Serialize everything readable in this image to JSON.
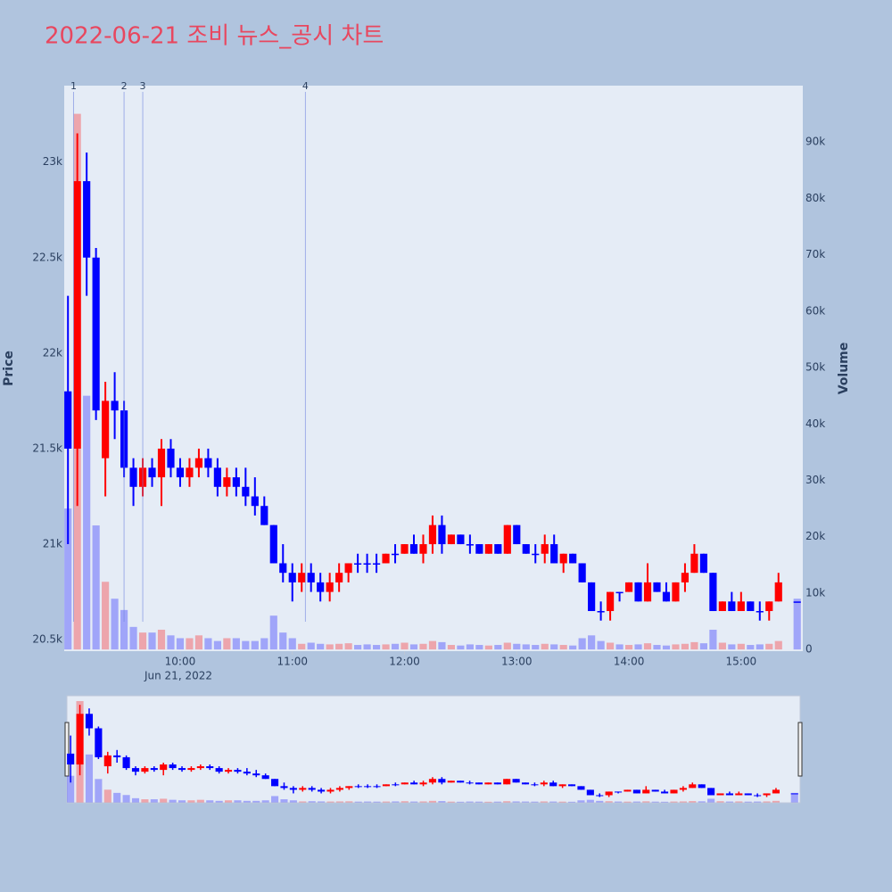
{
  "chart_data": {
    "type": "candlestick",
    "title": "2022-06-21 조비 뉴스_공시 차트",
    "y_title": "Price",
    "y2_title": "Volume",
    "x_sublabel": "Jun 21, 2022",
    "increasing_color": "#ff0000",
    "decreasing_color": "#0000ff",
    "grid": true,
    "xlim": [
      "2022-06-21 08:58",
      "2022-06-21 15:33"
    ],
    "xticks": [
      {
        "value": "2022-06-21 10:00",
        "label": "10:00"
      },
      {
        "value": "2022-06-21 11:00",
        "label": "11:00"
      },
      {
        "value": "2022-06-21 12:00",
        "label": "12:00"
      },
      {
        "value": "2022-06-21 13:00",
        "label": "13:00"
      },
      {
        "value": "2022-06-21 14:00",
        "label": "14:00"
      },
      {
        "value": "2022-06-21 15:00",
        "label": "15:00"
      }
    ],
    "ylim": [
      20440,
      23400
    ],
    "yticks": [
      {
        "value": 20500,
        "label": "20.5k"
      },
      {
        "value": 21000,
        "label": "21k"
      },
      {
        "value": 21500,
        "label": "21.5k"
      },
      {
        "value": 22000,
        "label": "22k"
      },
      {
        "value": 22500,
        "label": "22.5k"
      },
      {
        "value": 23000,
        "label": "23k"
      }
    ],
    "y2lim": [
      -300,
      100000
    ],
    "y2ticks": [
      0,
      {
        "value": 10000,
        "label": "10k"
      },
      {
        "value": 20000,
        "label": "20k"
      },
      {
        "value": 30000,
        "label": "30k"
      },
      {
        "value": 40000,
        "label": "40k"
      },
      {
        "value": 50000,
        "label": "50k"
      },
      {
        "value": 60000,
        "label": "60k"
      },
      {
        "value": 70000,
        "label": "70k"
      },
      {
        "value": 80000,
        "label": "80k"
      },
      {
        "value": 90000,
        "label": "90k"
      }
    ],
    "annotations": [
      {
        "x": "2022-06-21 09:03",
        "label": "1"
      },
      {
        "x": "2022-06-21 09:30",
        "label": "2"
      },
      {
        "x": "2022-06-21 09:40",
        "label": "3"
      },
      {
        "x": "2022-06-21 11:07",
        "label": "4"
      }
    ],
    "x": [
      "2022-06-21 09:00",
      "2022-06-21 09:05",
      "2022-06-21 09:10",
      "2022-06-21 09:15",
      "2022-06-21 09:20",
      "2022-06-21 09:25",
      "2022-06-21 09:30",
      "2022-06-21 09:35",
      "2022-06-21 09:40",
      "2022-06-21 09:45",
      "2022-06-21 09:50",
      "2022-06-21 09:55",
      "2022-06-21 10:00",
      "2022-06-21 10:05",
      "2022-06-21 10:10",
      "2022-06-21 10:15",
      "2022-06-21 10:20",
      "2022-06-21 10:25",
      "2022-06-21 10:30",
      "2022-06-21 10:35",
      "2022-06-21 10:40",
      "2022-06-21 10:45",
      "2022-06-21 10:50",
      "2022-06-21 10:55",
      "2022-06-21 11:00",
      "2022-06-21 11:05",
      "2022-06-21 11:10",
      "2022-06-21 11:15",
      "2022-06-21 11:20",
      "2022-06-21 11:25",
      "2022-06-21 11:30",
      "2022-06-21 11:35",
      "2022-06-21 11:40",
      "2022-06-21 11:45",
      "2022-06-21 11:50",
      "2022-06-21 11:55",
      "2022-06-21 12:00",
      "2022-06-21 12:05",
      "2022-06-21 12:10",
      "2022-06-21 12:15",
      "2022-06-21 12:20",
      "2022-06-21 12:25",
      "2022-06-21 12:30",
      "2022-06-21 12:35",
      "2022-06-21 12:40",
      "2022-06-21 12:45",
      "2022-06-21 12:50",
      "2022-06-21 12:55",
      "2022-06-21 13:00",
      "2022-06-21 13:05",
      "2022-06-21 13:10",
      "2022-06-21 13:15",
      "2022-06-21 13:20",
      "2022-06-21 13:25",
      "2022-06-21 13:30",
      "2022-06-21 13:35",
      "2022-06-21 13:40",
      "2022-06-21 13:45",
      "2022-06-21 13:50",
      "2022-06-21 13:55",
      "2022-06-21 14:00",
      "2022-06-21 14:05",
      "2022-06-21 14:10",
      "2022-06-21 14:15",
      "2022-06-21 14:20",
      "2022-06-21 14:25",
      "2022-06-21 14:30",
      "2022-06-21 14:35",
      "2022-06-21 14:40",
      "2022-06-21 14:45",
      "2022-06-21 14:50",
      "2022-06-21 14:55",
      "2022-06-21 15:00",
      "2022-06-21 15:05",
      "2022-06-21 15:10",
      "2022-06-21 15:15",
      "2022-06-21 15:20",
      "2022-06-21 15:30"
    ],
    "open": [
      21800,
      21500,
      22900,
      22500,
      21450,
      21750,
      21700,
      21400,
      21300,
      21400,
      21350,
      21500,
      21400,
      21350,
      21400,
      21450,
      21400,
      21300,
      21350,
      21300,
      21250,
      21200,
      21100,
      20900,
      20850,
      20800,
      20850,
      20800,
      20750,
      20800,
      20850,
      20900,
      20900,
      20900,
      20900,
      20950,
      20950,
      21000,
      20950,
      21000,
      21100,
      21000,
      21050,
      21000,
      21000,
      20950,
      21000,
      20950,
      21100,
      21000,
      20950,
      20950,
      21000,
      20900,
      20950,
      20900,
      20800,
      20650,
      20650,
      20750,
      20750,
      20800,
      20700,
      20800,
      20750,
      20700,
      20800,
      20850,
      20950,
      20850,
      20650,
      20700,
      20650,
      20700,
      20650,
      20650,
      20700,
      20700
    ],
    "high": [
      22300,
      23150,
      23050,
      22550,
      21850,
      21900,
      21750,
      21450,
      21450,
      21450,
      21550,
      21550,
      21450,
      21450,
      21500,
      21500,
      21450,
      21400,
      21400,
      21400,
      21350,
      21250,
      21100,
      21000,
      20900,
      20900,
      20900,
      20850,
      20850,
      20900,
      20900,
      20950,
      20950,
      20950,
      20950,
      21000,
      21000,
      21050,
      21050,
      21150,
      21150,
      21050,
      21050,
      21050,
      21000,
      21000,
      21000,
      21100,
      21100,
      21000,
      21000,
      21050,
      21050,
      20950,
      20950,
      20900,
      20800,
      20700,
      20750,
      20750,
      20800,
      20800,
      20900,
      20800,
      20800,
      20800,
      20900,
      21000,
      20950,
      20850,
      20700,
      20750,
      20750,
      20700,
      20700,
      20700,
      20850,
      20700
    ],
    "low": [
      21000,
      21200,
      22300,
      21650,
      21250,
      21550,
      21350,
      21200,
      21250,
      21300,
      21200,
      21350,
      21300,
      21300,
      21350,
      21350,
      21250,
      21250,
      21250,
      21200,
      21150,
      21100,
      20900,
      20800,
      20700,
      20750,
      20750,
      20700,
      20700,
      20750,
      20800,
      20850,
      20850,
      20850,
      20900,
      20900,
      20950,
      20950,
      20900,
      20950,
      20950,
      21000,
      21000,
      20950,
      20950,
      20950,
      20950,
      20950,
      21000,
      20950,
      20900,
      20900,
      20900,
      20850,
      20900,
      20800,
      20650,
      20600,
      20600,
      20700,
      20750,
      20700,
      20700,
      20750,
      20700,
      20700,
      20750,
      20850,
      20850,
      20650,
      20650,
      20650,
      20650,
      20650,
      20600,
      20600,
      20700,
      20700
    ],
    "close": [
      21500,
      22900,
      22500,
      21700,
      21750,
      21700,
      21400,
      21300,
      21400,
      21350,
      21500,
      21400,
      21350,
      21400,
      21450,
      21400,
      21300,
      21350,
      21300,
      21250,
      21200,
      21100,
      20900,
      20850,
      20800,
      20850,
      20800,
      20750,
      20800,
      20850,
      20900,
      20900,
      20900,
      20900,
      20950,
      20950,
      21000,
      20950,
      21000,
      21100,
      21000,
      21050,
      21000,
      21000,
      20950,
      21000,
      20950,
      21100,
      21000,
      20950,
      20950,
      21000,
      20900,
      20950,
      20900,
      20800,
      20650,
      20650,
      20750,
      20750,
      20800,
      20700,
      20800,
      20750,
      20700,
      20800,
      20850,
      20950,
      20850,
      20650,
      20700,
      20650,
      20700,
      20650,
      20650,
      20700,
      20800,
      20700
    ],
    "volume": [
      25000,
      95000,
      45000,
      22000,
      12000,
      9000,
      7000,
      4000,
      3000,
      3000,
      3500,
      2500,
      2000,
      2000,
      2500,
      2000,
      1500,
      2000,
      2000,
      1500,
      1500,
      2000,
      6000,
      3000,
      2000,
      1000,
      1200,
      1000,
      900,
      1000,
      1100,
      800,
      900,
      800,
      900,
      1000,
      1200,
      900,
      1000,
      1500,
      1300,
      800,
      700,
      900,
      800,
      700,
      800,
      1200,
      1000,
      900,
      800,
      1000,
      900,
      800,
      700,
      2000,
      2500,
      1500,
      1200,
      900,
      800,
      900,
      1100,
      800,
      700,
      900,
      1000,
      1300,
      1100,
      3500,
      1200,
      900,
      1000,
      800,
      900,
      1000,
      1500,
      9000
    ]
  }
}
